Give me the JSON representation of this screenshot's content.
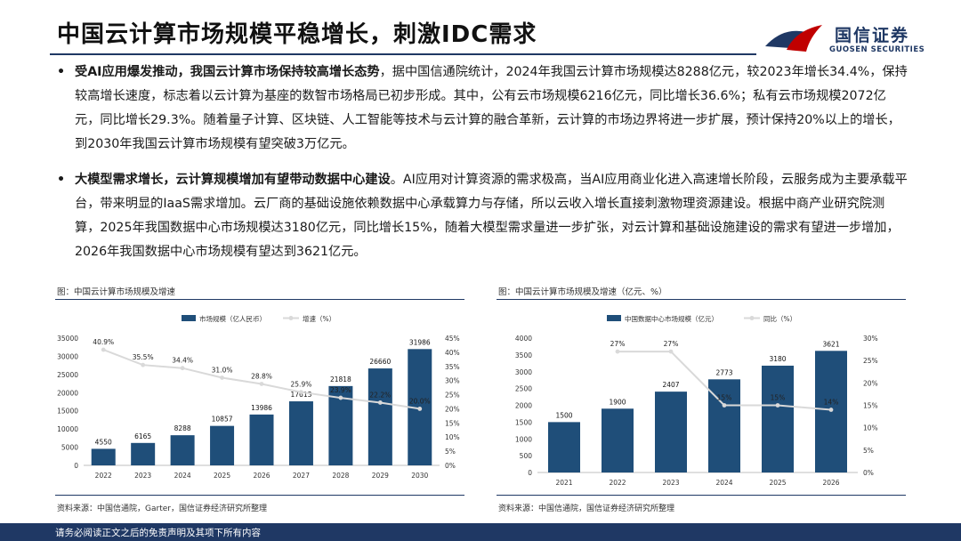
{
  "header": {
    "title": "中国云计算市场规模平稳增长，刺激IDC需求",
    "logo_cn": "国信证券",
    "logo_en": "GUOSEN SECURITIES"
  },
  "bullets": [
    {
      "bold": "受AI应用爆发推动，我国云计算市场保持较高增长态势",
      "text": "，据中国信通院统计，2024年我国云计算市场规模达8288亿元，较2023年增长34.4%，保持较高增长速度，标志着以云计算为基座的数智市场格局已初步形成。其中，公有云市场规模6216亿元，同比增长36.6%；私有云市场规模2072亿元，同比增长29.3%。随着量子计算、区块链、人工智能等技术与云计算的融合革新，云计算的市场边界将进一步扩展，预计保持20%以上的增长，到2030年我国云计算市场规模有望突破3万亿元。"
    },
    {
      "bold": "大模型需求增长，云计算规模增加有望带动数据中心建设",
      "text": "。AI应用对计算资源的需求极高，当AI应用商业化进入高速增长阶段，云服务成为主要承载平台，带来明显的IaaS需求增加。云厂商的基础设施依赖数据中心承载算力与存储，所以云收入增长直接刺激物理资源建设。根据中商产业研究院测算，2025年我国数据中心市场规模达3180亿元，同比增长15%，随着大模型需求量进一步扩张，对云计算和基础设施建设的需求有望进一步增加，2026年我国数据中心市场规模有望达到3621亿元。"
    }
  ],
  "footer": {
    "disclaimer": "请务必阅读正文之后的免责声明及其项下所有内容"
  },
  "colors": {
    "bar": "#1f4e79",
    "line": "#d9d9d9",
    "brand": "#1f3864",
    "accent_red": "#c00000"
  },
  "chart_data": [
    {
      "type": "bar",
      "caption": "图：中国云计算市场规模及增速",
      "source": "资料来源：中国信通院，Garter，国信证券经济研究所整理",
      "categories": [
        "2022",
        "2023",
        "2024",
        "2025",
        "2026",
        "2027",
        "2028",
        "2029",
        "2030"
      ],
      "series": [
        {
          "name": "市场规模（亿人民币）",
          "type": "bar",
          "axis": "left",
          "values": [
            4550,
            6165,
            8288,
            10857,
            13986,
            17613,
            21818,
            26660,
            31986
          ],
          "labels": [
            "4550",
            "6165",
            "8288",
            "10857",
            "13986",
            "17613",
            "21818",
            "26660",
            "31986"
          ]
        },
        {
          "name": "增速（%）",
          "type": "line",
          "axis": "right",
          "values": [
            40.9,
            35.5,
            34.4,
            31.0,
            28.8,
            25.9,
            23.9,
            22.2,
            20.0
          ],
          "labels": [
            "40.9%",
            "35.5%",
            "34.4%",
            "31.0%",
            "28.8%",
            "25.9%",
            "23.9%",
            "22.2%",
            "20.0%"
          ]
        }
      ],
      "ylim": [
        0,
        35000
      ],
      "yticks": [
        "0",
        "5000",
        "10000",
        "15000",
        "20000",
        "25000",
        "30000",
        "35000"
      ],
      "y2lim": [
        0,
        45
      ],
      "y2ticks": [
        "0%",
        "5%",
        "10%",
        "15%",
        "20%",
        "25%",
        "30%",
        "35%",
        "40%",
        "45%"
      ],
      "legend": "top-center",
      "grid": false
    },
    {
      "type": "bar",
      "caption": "图：中国云计算市场规模及增速（亿元、%）",
      "source": "资料来源：中国信通院，国信证券经济研究所整理",
      "categories": [
        "2021",
        "2022",
        "2023",
        "2024",
        "2025",
        "2026"
      ],
      "series": [
        {
          "name": "中国数据中心市场规模（亿元）",
          "type": "bar",
          "axis": "left",
          "values": [
            1500,
            1900,
            2407,
            2773,
            3180,
            3621
          ],
          "labels": [
            "1500",
            "1900",
            "2407",
            "2773",
            "3180",
            "3621"
          ]
        },
        {
          "name": "同比（%）",
          "type": "line",
          "axis": "right",
          "values": [
            null,
            27,
            27,
            15,
            15,
            14
          ],
          "labels": [
            "",
            "27%",
            "27%",
            "15%",
            "15%",
            "14%"
          ]
        }
      ],
      "ylim": [
        0,
        4000
      ],
      "yticks": [
        "0",
        "500",
        "1000",
        "1500",
        "2000",
        "2500",
        "3000",
        "3500",
        "4000"
      ],
      "y2lim": [
        0,
        30
      ],
      "y2ticks": [
        "0%",
        "5%",
        "10%",
        "15%",
        "20%",
        "25%",
        "30%"
      ],
      "legend": "top-center",
      "grid": false
    }
  ]
}
